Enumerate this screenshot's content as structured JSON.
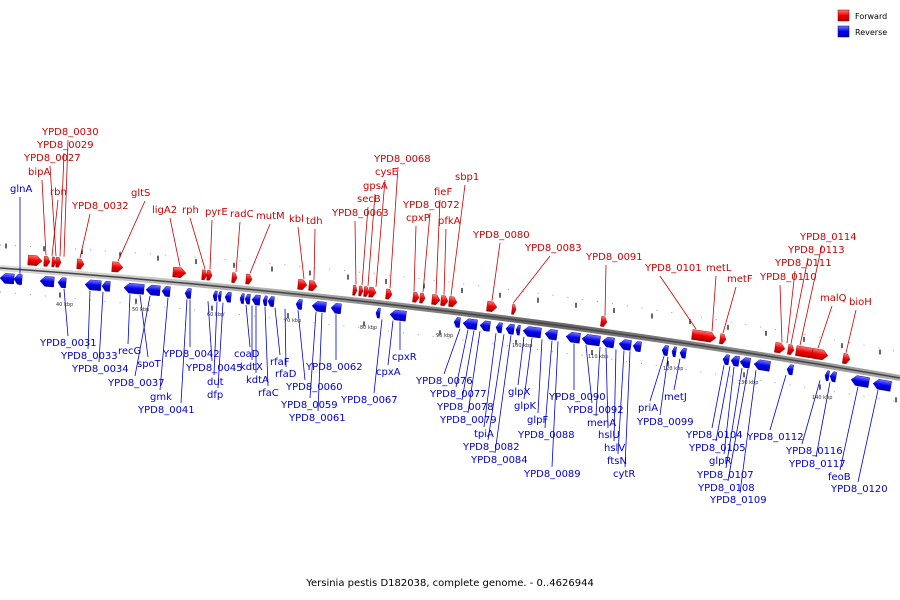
{
  "caption": "Yersinia pestis D182038, complete genome. - 0..4626944",
  "legend": {
    "forward": {
      "label": "Forward",
      "color": "#ee0000"
    },
    "reverse": {
      "label": "Reverse",
      "color": "#0000ee"
    }
  },
  "scale_labels": [
    "40 kbp",
    "50 kbp",
    "60 kbp",
    "70 kbp",
    "80 kbp",
    "90 kbp",
    "100 kbp",
    "110 kbp",
    "120 kbp",
    "130 kbp",
    "140 kbp"
  ],
  "forward_genes": [
    "YPD8_0030",
    "YPD8_0029",
    "YPD8_0027",
    "bipA",
    "rbn",
    "YPD8_0032",
    "gltS",
    "ligA2",
    "rph",
    "pyrE",
    "radC",
    "mutM",
    "kbl",
    "tdh",
    "YPD8_0068",
    "cysE",
    "secB",
    "gpsA",
    "YPD8_0063",
    "cpxP",
    "fieF",
    "YPD8_0072",
    "pfkA",
    "sbp1",
    "YPD8_0080",
    "YPD8_0083",
    "YPD8_0091",
    "YPD8_0101",
    "metL",
    "metF",
    "YPD8_0114",
    "YPD8_0113",
    "YPD8_0111",
    "YPD8_0110",
    "malQ",
    "bioH"
  ],
  "reverse_genes": [
    "glnA",
    "YPD8_0031",
    "YPD8_0033",
    "YPD8_0034",
    "recG",
    "spoT",
    "YPD8_0037",
    "gmk",
    "YPD8_0041",
    "YPD8_0042",
    "YPD8_0045",
    "dut",
    "dfp",
    "coaD",
    "kdtX",
    "kdtA",
    "rfaC",
    "rfaF",
    "rfaD",
    "YPD8_0060",
    "YPD8_0059",
    "YPD8_0061",
    "YPD8_0062",
    "YPD8_0067",
    "cpxA",
    "cpxR",
    "YPD8_0076",
    "YPD8_0077",
    "YPD8_0078",
    "YPD8_0079",
    "tpiA",
    "YPD8_0082",
    "YPD8_0084",
    "glpX",
    "glpK",
    "glpF",
    "YPD8_0088",
    "YPD8_0089",
    "YPD8_0090",
    "YPD8_0092",
    "menA",
    "hslU",
    "hslV",
    "ftsN",
    "cytR",
    "priA",
    "YPD8_0099",
    "metJ",
    "YPD8_0104",
    "YPD8_0105",
    "glpR",
    "YPD8_0107",
    "YPD8_0108",
    "YPD8_0109",
    "YPD8_0112",
    "YPD8_0116",
    "YPD8_0117",
    "feoB",
    "YPD8_0120"
  ]
}
